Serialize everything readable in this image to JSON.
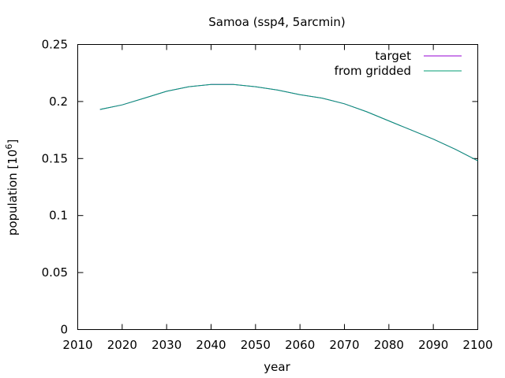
{
  "chart_data": {
    "type": "line",
    "title": "Samoa (ssp4, 5arcmin)",
    "xlabel": "year",
    "ylabel": "population [10",
    "ylabel_superscript": "6",
    "ylabel_suffix": "]",
    "xlim": [
      2010,
      2100
    ],
    "ylim": [
      0,
      0.25
    ],
    "x_ticks": [
      2010,
      2020,
      2030,
      2040,
      2050,
      2060,
      2070,
      2080,
      2090,
      2100
    ],
    "y_ticks": [
      0,
      0.05,
      0.1,
      0.15,
      0.2,
      0.25
    ],
    "y_tick_labels": [
      "0",
      "0.05",
      "0.1",
      "0.15",
      "0.2",
      "0.25"
    ],
    "grid": false,
    "legend_position": "top-right",
    "series": [
      {
        "name": "target",
        "color": "#9400d3",
        "x": [
          2015,
          2020,
          2025,
          2030,
          2035,
          2040,
          2045,
          2050,
          2055,
          2060,
          2065,
          2070,
          2075,
          2080,
          2085,
          2090,
          2095,
          2100
        ],
        "y": [
          0.193,
          0.197,
          0.203,
          0.209,
          0.213,
          0.215,
          0.215,
          0.213,
          0.21,
          0.206,
          0.203,
          0.198,
          0.191,
          0.183,
          0.175,
          0.167,
          0.158,
          0.148
        ]
      },
      {
        "name": "from gridded",
        "color": "#009e73",
        "x": [
          2015,
          2020,
          2025,
          2030,
          2035,
          2040,
          2045,
          2050,
          2055,
          2060,
          2065,
          2070,
          2075,
          2080,
          2085,
          2090,
          2095,
          2100
        ],
        "y": [
          0.193,
          0.197,
          0.203,
          0.209,
          0.213,
          0.215,
          0.215,
          0.213,
          0.21,
          0.206,
          0.203,
          0.198,
          0.191,
          0.183,
          0.175,
          0.167,
          0.158,
          0.148
        ]
      }
    ]
  }
}
